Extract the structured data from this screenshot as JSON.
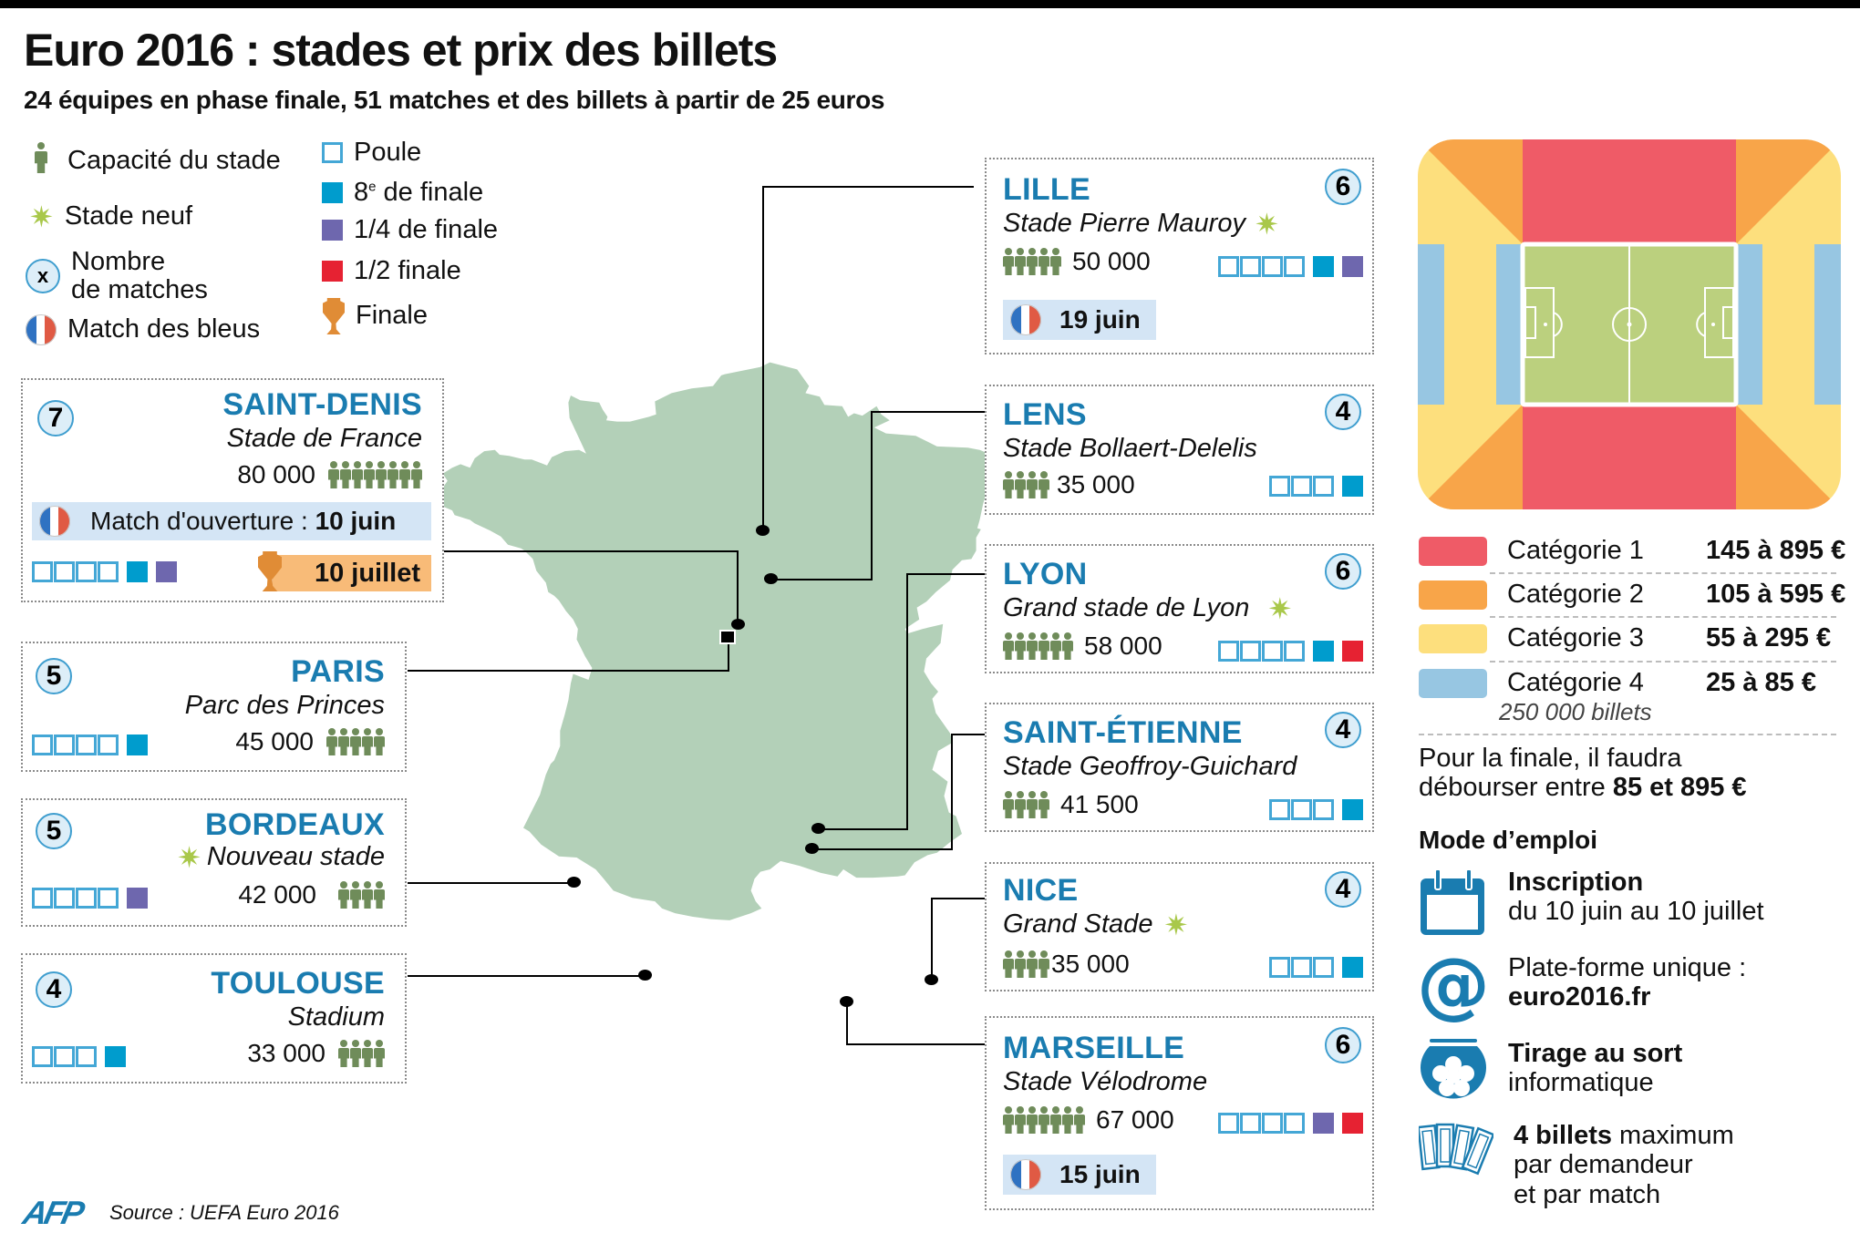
{
  "header": {
    "title": "Euro 2016 : stades et prix des billets",
    "subtitle": "24 équipes en phase finale, 51 matches et des billets à partir de 25 euros"
  },
  "legend": {
    "capacity": "Capacité du stade",
    "new_stadium": "Stade neuf",
    "match_count_symbol": "x",
    "match_count_line1": "Nombre",
    "match_count_line2": "de matches",
    "france_match": "Match des bleus",
    "poule": "Poule",
    "eighth_num": "8",
    "eighth_sup": "e",
    "eighth_rest": " de finale",
    "quarter": "1/4 de finale",
    "semi": "1/2 finale",
    "final": "Finale"
  },
  "colors": {
    "city": "#1a7cb0",
    "poule": "#44a7d6",
    "eighth": "#009ccd",
    "quarter": "#6e67ae",
    "semi": "#e62232",
    "final": "#e08c36",
    "map": "#b3d0b8",
    "cat1": "#ef5b67",
    "cat2": "#f8a549",
    "cat3": "#fddf7d",
    "cat4": "#97c6e2",
    "pitch": "#bbd07e"
  },
  "stadiums": {
    "saint_denis": {
      "city": "SAINT-DENIS",
      "stadium": "Stade de France",
      "capacity": "80 000",
      "people": 8,
      "matches": "7",
      "france_label": "Match d'ouverture : ",
      "france_date": "10 juin",
      "final_date": "10 juillet",
      "poule": 4,
      "rounds": [
        "huit",
        "quart"
      ]
    },
    "paris": {
      "city": "PARIS",
      "stadium": "Parc des Princes",
      "capacity": "45 000",
      "people": 5,
      "matches": "5",
      "poule": 4,
      "rounds": [
        "huit"
      ]
    },
    "bordeaux": {
      "city": "BORDEAUX",
      "stadium": "Nouveau stade",
      "capacity": "42 000",
      "people": 4,
      "matches": "5",
      "poule": 4,
      "rounds": [
        "quart"
      ]
    },
    "toulouse": {
      "city": "TOULOUSE",
      "stadium": "Stadium",
      "capacity": "33 000",
      "people": 4,
      "matches": "4",
      "poule": 3,
      "rounds": [
        "huit"
      ]
    },
    "lille": {
      "city": "LILLE",
      "stadium": "Stade Pierre Mauroy",
      "capacity": "50 000",
      "people": 5,
      "matches": "6",
      "france_date": "19 juin",
      "poule": 4,
      "rounds": [
        "huit",
        "quart"
      ]
    },
    "lens": {
      "city": "LENS",
      "stadium": "Stade Bollaert-Delelis",
      "capacity": "35 000",
      "people": 4,
      "matches": "4",
      "poule": 3,
      "rounds": [
        "huit"
      ]
    },
    "lyon": {
      "city": "LYON",
      "stadium": "Grand stade de Lyon",
      "capacity": "58 000",
      "people": 6,
      "matches": "6",
      "poule": 4,
      "rounds": [
        "huit",
        "demi"
      ]
    },
    "saint_etienne": {
      "city": "SAINT-ÉTIENNE",
      "stadium": "Stade Geoffroy-Guichard",
      "capacity": "41 500",
      "people": 4,
      "matches": "4",
      "poule": 3,
      "rounds": [
        "huit"
      ]
    },
    "nice": {
      "city": "NICE",
      "stadium": "Grand Stade",
      "capacity": "35 000",
      "people": 4,
      "matches": "4",
      "poule": 3,
      "rounds": [
        "huit"
      ]
    },
    "marseille": {
      "city": "MARSEILLE",
      "stadium": "Stade Vélodrome",
      "capacity": "67 000",
      "people": 7,
      "matches": "6",
      "france_date": "15 juin",
      "poule": 4,
      "rounds": [
        "quart",
        "demi"
      ]
    }
  },
  "prices": {
    "categories": [
      {
        "label": "Catégorie 1",
        "price": "145 à 895 €"
      },
      {
        "label": "Catégorie 2",
        "price": "105 à 595 €"
      },
      {
        "label": "Catégorie 3",
        "price": "55 à 295 €"
      },
      {
        "label": "Catégorie 4",
        "price": "25 à 85 €",
        "note": "250 000 billets"
      }
    ],
    "final_note_line1": "Pour la finale, il faudra",
    "final_note_line2_prefix": "débourser entre ",
    "final_note_line2_bold": "85 et 895 €"
  },
  "mode_emploi": {
    "title": "Mode d’emploi",
    "items": [
      {
        "icon": "calendar-icon",
        "bold": "Inscription",
        "text": "du 10 juin au 10 juillet"
      },
      {
        "icon": "at-sign-icon",
        "text": "Plate-forme unique :",
        "bold": "euro2016.fr"
      },
      {
        "icon": "lottery-bowl-icon",
        "bold": "Tirage au sort",
        "text": "informatique"
      },
      {
        "icon": "tickets-icon",
        "bold": "4 billets",
        "text_after_bold": " maximum",
        "line2": "par demandeur",
        "line3": "et par match"
      }
    ]
  },
  "footer": {
    "logo": "AFP",
    "source": "Source : UEFA Euro 2016"
  }
}
